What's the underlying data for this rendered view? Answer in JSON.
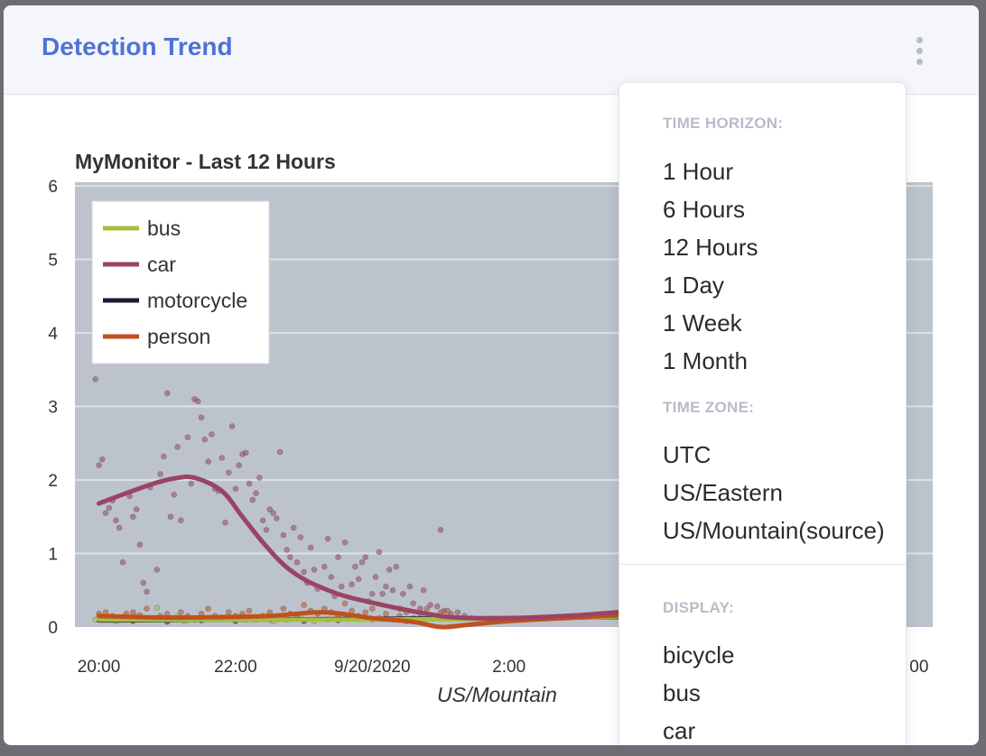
{
  "card": {
    "title": "Detection Trend",
    "menu_icon": "kebab-vertical-icon"
  },
  "chart_data": {
    "type": "line",
    "title": "MyMonitor - Last 12 Hours",
    "xlabel": "US/Mountain",
    "ylabel": "",
    "ylim": [
      0,
      6.05
    ],
    "xlim_hours": [
      -0.35,
      12.2
    ],
    "yticks": [
      0,
      1,
      2,
      3,
      4,
      5,
      6
    ],
    "xticks": [
      {
        "label": "20:00",
        "hours": 0
      },
      {
        "label": "22:00",
        "hours": 2
      },
      {
        "label": "9/20/2020",
        "hours": 4
      },
      {
        "label": "2:00",
        "hours": 6
      },
      {
        "label": "00",
        "hours": 12
      }
    ],
    "background": "#bcc3cc",
    "grid": true,
    "legend_placement": "top-left",
    "series": [
      {
        "name": "bus",
        "color": "#a4c03d",
        "x": [
          0.0,
          2.0,
          4.0,
          6.5,
          7.8
        ],
        "y": [
          0.1,
          0.1,
          0.1,
          0.12,
          0.15
        ]
      },
      {
        "name": "car",
        "color": "#9a4464",
        "x": [
          0.0,
          0.4,
          0.8,
          1.1,
          1.4,
          1.8,
          2.1,
          2.4,
          2.7,
          3.0,
          3.3,
          3.6,
          4.0,
          4.4,
          4.8,
          5.2,
          6.0,
          7.0,
          7.8
        ],
        "y": [
          1.68,
          1.82,
          1.95,
          2.02,
          2.03,
          1.85,
          1.5,
          1.15,
          0.85,
          0.65,
          0.52,
          0.42,
          0.33,
          0.25,
          0.18,
          0.13,
          0.12,
          0.16,
          0.22
        ]
      },
      {
        "name": "motorcycle",
        "color": "#1d1b33",
        "x": [
          0.0,
          2.0,
          4.0,
          6.0,
          7.8
        ],
        "y": [
          0.09,
          0.1,
          0.11,
          0.12,
          0.14
        ]
      },
      {
        "name": "person",
        "color": "#c0501f",
        "x": [
          0.0,
          0.8,
          1.5,
          2.5,
          3.3,
          4.0,
          4.6,
          5.0,
          5.4,
          6.0,
          7.0,
          7.8
        ],
        "y": [
          0.15,
          0.13,
          0.13,
          0.15,
          0.2,
          0.12,
          0.07,
          0.0,
          0.03,
          0.08,
          0.13,
          0.17
        ]
      }
    ],
    "scatter": [
      {
        "series": "car",
        "color": "#9a4464",
        "points": [
          [
            -0.05,
            3.37
          ],
          [
            0.0,
            2.2
          ],
          [
            0.05,
            2.28
          ],
          [
            0.1,
            1.55
          ],
          [
            0.15,
            1.62
          ],
          [
            0.2,
            1.72
          ],
          [
            0.25,
            1.45
          ],
          [
            0.3,
            1.35
          ],
          [
            0.35,
            0.88
          ],
          [
            0.45,
            1.78
          ],
          [
            0.5,
            1.5
          ],
          [
            0.55,
            1.6
          ],
          [
            0.6,
            1.12
          ],
          [
            0.65,
            0.6
          ],
          [
            0.7,
            0.48
          ],
          [
            0.75,
            1.9
          ],
          [
            0.85,
            0.78
          ],
          [
            0.9,
            2.08
          ],
          [
            0.95,
            2.32
          ],
          [
            1.0,
            3.18
          ],
          [
            1.05,
            1.5
          ],
          [
            1.1,
            1.8
          ],
          [
            1.15,
            2.45
          ],
          [
            1.2,
            1.45
          ],
          [
            1.3,
            2.58
          ],
          [
            1.35,
            1.95
          ],
          [
            1.4,
            3.1
          ],
          [
            1.45,
            3.07
          ],
          [
            1.5,
            2.85
          ],
          [
            1.55,
            2.55
          ],
          [
            1.6,
            2.25
          ],
          [
            1.65,
            2.62
          ],
          [
            1.7,
            1.88
          ],
          [
            1.75,
            1.85
          ],
          [
            1.8,
            2.3
          ],
          [
            1.85,
            1.42
          ],
          [
            1.9,
            2.1
          ],
          [
            1.95,
            2.73
          ],
          [
            2.0,
            1.88
          ],
          [
            2.05,
            2.2
          ],
          [
            2.1,
            2.35
          ],
          [
            2.15,
            2.37
          ],
          [
            2.2,
            1.95
          ],
          [
            2.25,
            1.73
          ],
          [
            2.3,
            1.82
          ],
          [
            2.35,
            2.03
          ],
          [
            2.4,
            1.45
          ],
          [
            2.45,
            1.32
          ],
          [
            2.5,
            1.6
          ],
          [
            2.55,
            1.55
          ],
          [
            2.6,
            1.48
          ],
          [
            2.65,
            2.38
          ],
          [
            2.7,
            1.25
          ],
          [
            2.75,
            1.05
          ],
          [
            2.8,
            0.95
          ],
          [
            2.85,
            1.35
          ],
          [
            2.9,
            0.88
          ],
          [
            2.95,
            1.22
          ],
          [
            3.0,
            0.75
          ],
          [
            3.05,
            0.6
          ],
          [
            3.1,
            1.08
          ],
          [
            3.15,
            0.78
          ],
          [
            3.2,
            0.52
          ],
          [
            3.3,
            0.82
          ],
          [
            3.35,
            1.2
          ],
          [
            3.4,
            0.68
          ],
          [
            3.45,
            0.42
          ],
          [
            3.5,
            0.95
          ],
          [
            3.55,
            0.55
          ],
          [
            3.6,
            1.15
          ],
          [
            3.7,
            0.58
          ],
          [
            3.75,
            0.82
          ],
          [
            3.8,
            0.65
          ],
          [
            3.85,
            0.88
          ],
          [
            3.9,
            0.95
          ],
          [
            3.95,
            0.35
          ],
          [
            4.0,
            0.45
          ],
          [
            4.05,
            0.68
          ],
          [
            4.1,
            1.02
          ],
          [
            4.15,
            0.45
          ],
          [
            4.2,
            0.55
          ],
          [
            4.25,
            0.78
          ],
          [
            4.3,
            0.5
          ],
          [
            4.35,
            0.82
          ],
          [
            4.4,
            0.25
          ],
          [
            4.45,
            0.45
          ],
          [
            4.55,
            0.55
          ],
          [
            4.6,
            0.32
          ],
          [
            4.7,
            0.25
          ],
          [
            4.75,
            0.5
          ],
          [
            4.85,
            0.3
          ],
          [
            4.95,
            0.28
          ],
          [
            5.0,
            1.32
          ],
          [
            5.05,
            0.22
          ],
          [
            5.15,
            0.18
          ],
          [
            5.25,
            0.2
          ],
          [
            5.35,
            0.15
          ],
          [
            5.45,
            0.12
          ]
        ]
      },
      {
        "series": "person",
        "color": "#c0501f",
        "points": [
          [
            0.0,
            0.18
          ],
          [
            0.1,
            0.2
          ],
          [
            0.2,
            0.15
          ],
          [
            0.3,
            0.12
          ],
          [
            0.4,
            0.18
          ],
          [
            0.5,
            0.2
          ],
          [
            0.6,
            0.16
          ],
          [
            0.7,
            0.25
          ],
          [
            0.8,
            0.1
          ],
          [
            0.9,
            0.15
          ],
          [
            1.0,
            0.18
          ],
          [
            1.1,
            0.12
          ],
          [
            1.2,
            0.2
          ],
          [
            1.3,
            0.15
          ],
          [
            1.4,
            0.1
          ],
          [
            1.5,
            0.18
          ],
          [
            1.6,
            0.25
          ],
          [
            1.7,
            0.15
          ],
          [
            1.8,
            0.12
          ],
          [
            1.9,
            0.2
          ],
          [
            2.0,
            0.15
          ],
          [
            2.1,
            0.18
          ],
          [
            2.2,
            0.22
          ],
          [
            2.3,
            0.1
          ],
          [
            2.4,
            0.15
          ],
          [
            2.5,
            0.2
          ],
          [
            2.6,
            0.12
          ],
          [
            2.7,
            0.25
          ],
          [
            2.8,
            0.18
          ],
          [
            2.9,
            0.15
          ],
          [
            3.0,
            0.3
          ],
          [
            3.1,
            0.22
          ],
          [
            3.2,
            0.18
          ],
          [
            3.3,
            0.25
          ],
          [
            3.4,
            0.2
          ],
          [
            3.5,
            0.15
          ],
          [
            3.6,
            0.32
          ],
          [
            3.7,
            0.22
          ],
          [
            3.8,
            0.15
          ],
          [
            3.9,
            0.2
          ],
          [
            4.0,
            0.25
          ],
          [
            4.1,
            0.12
          ],
          [
            4.2,
            0.18
          ],
          [
            4.3,
            0.1
          ],
          [
            4.4,
            0.15
          ],
          [
            4.5,
            0.2
          ],
          [
            4.6,
            0.12
          ],
          [
            4.7,
            0.18
          ],
          [
            4.8,
            0.25
          ],
          [
            4.9,
            0.15
          ],
          [
            5.0,
            0.2
          ],
          [
            5.1,
            0.22
          ]
        ]
      },
      {
        "series": "bus",
        "color": "#a4c03d",
        "points": [
          [
            -0.05,
            0.1
          ],
          [
            0.05,
            0.14
          ],
          [
            0.15,
            0.12
          ],
          [
            0.25,
            0.08
          ],
          [
            0.35,
            0.12
          ],
          [
            0.45,
            0.1
          ],
          [
            0.55,
            0.14
          ],
          [
            0.65,
            0.1
          ],
          [
            0.75,
            0.12
          ],
          [
            0.85,
            0.26
          ],
          [
            0.95,
            0.12
          ],
          [
            1.05,
            0.1
          ],
          [
            1.15,
            0.14
          ],
          [
            1.25,
            0.08
          ],
          [
            2.15,
            0.1
          ],
          [
            2.35,
            0.12
          ],
          [
            2.55,
            0.08
          ],
          [
            2.75,
            0.1
          ],
          [
            2.95,
            0.12
          ],
          [
            3.15,
            0.08
          ],
          [
            3.35,
            0.1
          ]
        ]
      },
      {
        "series": "motorcycle",
        "color": "#1d1b33",
        "points": [
          [
            0.5,
            0.08
          ],
          [
            1.0,
            0.07
          ],
          [
            1.5,
            0.09
          ],
          [
            2.0,
            0.08
          ],
          [
            2.5,
            0.1
          ],
          [
            3.0,
            0.08
          ],
          [
            3.5,
            0.09
          ],
          [
            4.0,
            0.1
          ],
          [
            4.5,
            0.08
          ]
        ]
      }
    ]
  },
  "dropdown": {
    "sections": [
      {
        "heading": "TIME HORIZON:",
        "items": [
          "1 Hour",
          "6 Hours",
          "12 Hours",
          "1 Day",
          "1 Week",
          "1 Month"
        ]
      },
      {
        "heading": "TIME ZONE:",
        "items": [
          "UTC",
          "US/Eastern",
          "US/Mountain(source)"
        ]
      },
      {
        "heading": "DISPLAY:",
        "items": [
          "bicycle",
          "bus",
          "car"
        ]
      }
    ]
  }
}
